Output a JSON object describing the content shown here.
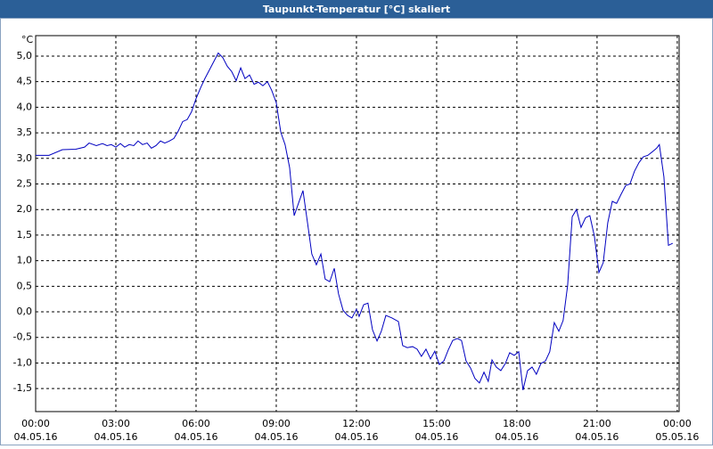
{
  "chart_data": {
    "type": "line",
    "title": "Taupunkt-Temperatur [°C] skaliert",
    "y_unit": "°C",
    "grid": true,
    "xlim": [
      0,
      24.07
    ],
    "ylim": [
      -1.95,
      5.4
    ],
    "xticks": [
      {
        "value": 0,
        "label": "00:00"
      },
      {
        "value": 3,
        "label": "03:00"
      },
      {
        "value": 6,
        "label": "06:00"
      },
      {
        "value": 9,
        "label": "09:00"
      },
      {
        "value": 12,
        "label": "12:00"
      },
      {
        "value": 15,
        "label": "15:00"
      },
      {
        "value": 18,
        "label": "18:00"
      },
      {
        "value": 21,
        "label": "21:00"
      },
      {
        "value": 24,
        "label": "00:00"
      }
    ],
    "xtick_dates": [
      "04.05.16",
      "04.05.16",
      "04.05.16",
      "04.05.16",
      "04.05.16",
      "04.05.16",
      "04.05.16",
      "04.05.16",
      "05.05.16"
    ],
    "yticks": [
      {
        "value": 5.0,
        "label": "5,0"
      },
      {
        "value": 4.5,
        "label": "4,5"
      },
      {
        "value": 4.0,
        "label": "4,0"
      },
      {
        "value": 3.5,
        "label": "3,5"
      },
      {
        "value": 3.0,
        "label": "3,0"
      },
      {
        "value": 2.5,
        "label": "2,5"
      },
      {
        "value": 2.0,
        "label": "2,0"
      },
      {
        "value": 1.5,
        "label": "1,5"
      },
      {
        "value": 1.0,
        "label": "1,0"
      },
      {
        "value": 0.5,
        "label": "0,5"
      },
      {
        "value": 0.0,
        "label": "0,0"
      },
      {
        "value": -0.5,
        "label": "-0,5"
      },
      {
        "value": -1.0,
        "label": "-1,0"
      },
      {
        "value": -1.5,
        "label": "-1,5"
      }
    ],
    "x": [
      0,
      0.5,
      1,
      1.5,
      1.83,
      2,
      2.27,
      2.5,
      2.67,
      2.83,
      3,
      3.17,
      3.33,
      3.5,
      3.67,
      3.83,
      4,
      4.17,
      4.33,
      4.5,
      4.67,
      4.83,
      5,
      5.17,
      5.33,
      5.5,
      5.67,
      5.83,
      6,
      6.17,
      6.33,
      6.5,
      6.67,
      6.83,
      7,
      7.17,
      7.33,
      7.5,
      7.67,
      7.83,
      8,
      8.17,
      8.33,
      8.5,
      8.67,
      8.83,
      9,
      9.17,
      9.33,
      9.5,
      9.67,
      9.83,
      10,
      10.17,
      10.33,
      10.5,
      10.67,
      10.83,
      11,
      11.17,
      11.33,
      11.5,
      11.67,
      11.83,
      12,
      12.1,
      12.27,
      12.43,
      12.6,
      12.77,
      12.93,
      13.1,
      13.33,
      13.57,
      13.73,
      13.9,
      14.1,
      14.27,
      14.43,
      14.6,
      14.77,
      14.93,
      15.1,
      15.27,
      15.43,
      15.6,
      15.77,
      15.93,
      16.1,
      16.27,
      16.43,
      16.6,
      16.77,
      16.93,
      17.07,
      17.23,
      17.4,
      17.57,
      17.73,
      17.9,
      18.07,
      18.23,
      18.4,
      18.57,
      18.73,
      18.9,
      19.07,
      19.23,
      19.4,
      19.57,
      19.73,
      19.9,
      20.07,
      20.23,
      20.4,
      20.57,
      20.73,
      20.9,
      21.07,
      21.23,
      21.4,
      21.57,
      21.73,
      21.9,
      22.07,
      22.23,
      22.4,
      22.57,
      22.73,
      22.9,
      23.07,
      23.23,
      23.33,
      23.5,
      23.67,
      23.83
    ],
    "series": [
      {
        "color": "#0000c0",
        "values": [
          3.06,
          3.06,
          3.17,
          3.18,
          3.22,
          3.3,
          3.25,
          3.29,
          3.25,
          3.27,
          3.22,
          3.29,
          3.22,
          3.27,
          3.25,
          3.34,
          3.27,
          3.3,
          3.2,
          3.25,
          3.34,
          3.3,
          3.34,
          3.39,
          3.53,
          3.72,
          3.76,
          3.91,
          4.17,
          4.38,
          4.56,
          4.73,
          4.9,
          5.06,
          4.97,
          4.8,
          4.7,
          4.52,
          4.77,
          4.56,
          4.63,
          4.45,
          4.49,
          4.42,
          4.5,
          4.33,
          4.09,
          3.51,
          3.27,
          2.82,
          1.88,
          2.12,
          2.37,
          1.74,
          1.13,
          0.92,
          1.13,
          0.64,
          0.59,
          0.85,
          0.35,
          0.03,
          -0.07,
          -0.12,
          0.05,
          -0.09,
          0.14,
          0.17,
          -0.35,
          -0.57,
          -0.38,
          -0.07,
          -0.12,
          -0.19,
          -0.66,
          -0.7,
          -0.68,
          -0.73,
          -0.87,
          -0.73,
          -0.92,
          -0.77,
          -1.03,
          -0.96,
          -0.75,
          -0.56,
          -0.52,
          -0.56,
          -0.96,
          -1.1,
          -1.3,
          -1.39,
          -1.18,
          -1.36,
          -0.94,
          -1.08,
          -1.15,
          -1.01,
          -0.8,
          -0.85,
          -0.78,
          -1.53,
          -1.15,
          -1.08,
          -1.22,
          -1.01,
          -0.96,
          -0.78,
          -0.21,
          -0.38,
          -0.17,
          0.52,
          1.86,
          2.0,
          1.65,
          1.84,
          1.88,
          1.48,
          0.77,
          0.96,
          1.74,
          2.16,
          2.12,
          2.3,
          2.47,
          2.5,
          2.75,
          2.92,
          3.03,
          3.06,
          3.13,
          3.2,
          3.27,
          2.64,
          1.3,
          1.34
        ]
      }
    ]
  }
}
